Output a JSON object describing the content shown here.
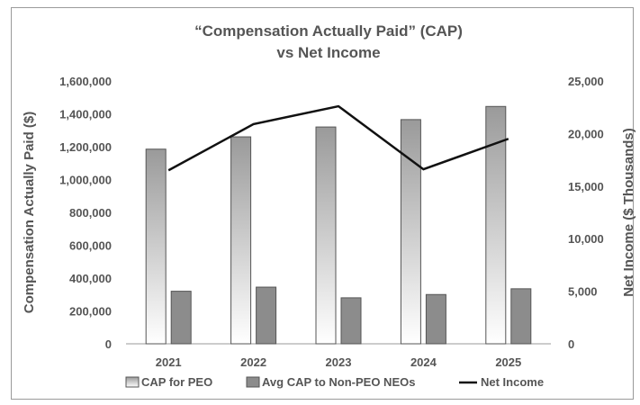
{
  "chart_data": {
    "type": "bar",
    "title_lines": [
      "“Compensation Actually Paid” (CAP)",
      "vs Net Income"
    ],
    "categories": [
      "2021",
      "2022",
      "2023",
      "2024",
      "2025"
    ],
    "ylabel": "Compensation Actually Paid ($)",
    "y2label": "Net Income ($ Thousands)",
    "ylim": [
      0,
      1600000
    ],
    "y2lim": [
      0,
      25000
    ],
    "y_ticks": [
      "1,600,000",
      "1,400,000",
      "1,200,000",
      "1,000,000",
      "800,000",
      "600,000",
      "400,000",
      "200,000",
      "0"
    ],
    "y2_ticks": [
      "25,000",
      "20,000",
      "15,000",
      "10,000",
      "5,000",
      "0"
    ],
    "grid": false,
    "legend_position": "bottom",
    "series": [
      {
        "name": "CAP for PEO",
        "type": "bar",
        "axis": "left",
        "values": [
          1185000,
          1260000,
          1320000,
          1365000,
          1445000
        ]
      },
      {
        "name": "Avg CAP to Non-PEO NEOs",
        "type": "bar",
        "axis": "left",
        "values": [
          320000,
          345000,
          280000,
          300000,
          335000
        ]
      },
      {
        "name": "Net Income",
        "type": "line",
        "axis": "right",
        "values": [
          16500,
          20900,
          22600,
          16600,
          19500
        ]
      }
    ],
    "colors": {
      "peo_bar_light": "#ffffff",
      "peo_bar_dark": "#a8a8a8",
      "neo_bar": "#8c8c8c",
      "line": "#111111",
      "text": "#555555"
    }
  }
}
